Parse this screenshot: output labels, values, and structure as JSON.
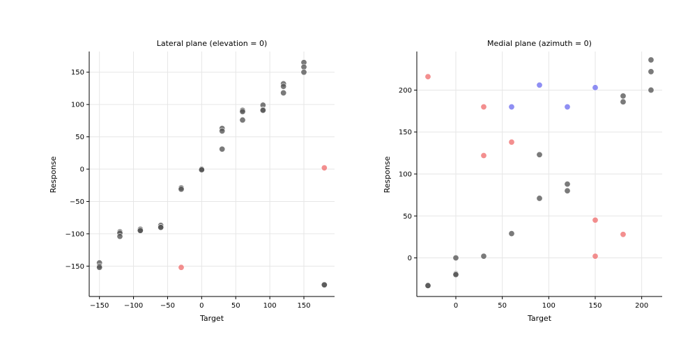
{
  "chart_data": [
    {
      "type": "scatter",
      "title": "Lateral plane (elevation = 0)",
      "xlabel": "Target",
      "ylabel": "Response",
      "xlim": [
        -165,
        195
      ],
      "ylim": [
        -197,
        182
      ],
      "xticks": [
        -150,
        -100,
        -50,
        0,
        50,
        100,
        150
      ],
      "yticks": [
        -150,
        -100,
        -50,
        0,
        50,
        100,
        150
      ],
      "xtick_labels": [
        "−150",
        "−100",
        "−50",
        "0",
        "50",
        "100",
        "150"
      ],
      "ytick_labels": [
        "−150",
        "−100",
        "−50",
        "0",
        "50",
        "100",
        "150"
      ],
      "grid": true,
      "colors": {
        "gray": "#555555",
        "red": "#f07070",
        "blue": "#7070f0"
      },
      "points": [
        {
          "x": -150,
          "y": -145,
          "c": "gray"
        },
        {
          "x": -150,
          "y": -150,
          "c": "gray"
        },
        {
          "x": -150,
          "y": -152,
          "c": "gray"
        },
        {
          "x": -120,
          "y": -97,
          "c": "gray"
        },
        {
          "x": -120,
          "y": -99,
          "c": "gray"
        },
        {
          "x": -120,
          "y": -104,
          "c": "gray"
        },
        {
          "x": -90,
          "y": -93,
          "c": "gray"
        },
        {
          "x": -90,
          "y": -95,
          "c": "gray"
        },
        {
          "x": -90,
          "y": -95,
          "c": "gray"
        },
        {
          "x": -60,
          "y": -87,
          "c": "gray"
        },
        {
          "x": -60,
          "y": -90,
          "c": "gray"
        },
        {
          "x": -60,
          "y": -90,
          "c": "gray"
        },
        {
          "x": -30,
          "y": -29,
          "c": "gray"
        },
        {
          "x": -30,
          "y": -31,
          "c": "gray"
        },
        {
          "x": -30,
          "y": -152,
          "c": "red"
        },
        {
          "x": 0,
          "y": 0,
          "c": "gray"
        },
        {
          "x": 0,
          "y": 0,
          "c": "gray"
        },
        {
          "x": 0,
          "y": -1,
          "c": "gray"
        },
        {
          "x": 30,
          "y": 63,
          "c": "gray"
        },
        {
          "x": 30,
          "y": 59,
          "c": "gray"
        },
        {
          "x": 30,
          "y": 31,
          "c": "gray"
        },
        {
          "x": 60,
          "y": 91,
          "c": "gray"
        },
        {
          "x": 60,
          "y": 89,
          "c": "gray"
        },
        {
          "x": 60,
          "y": 76,
          "c": "gray"
        },
        {
          "x": 90,
          "y": 99,
          "c": "gray"
        },
        {
          "x": 90,
          "y": 92,
          "c": "gray"
        },
        {
          "x": 90,
          "y": 91,
          "c": "gray"
        },
        {
          "x": 120,
          "y": 132,
          "c": "gray"
        },
        {
          "x": 120,
          "y": 128,
          "c": "gray"
        },
        {
          "x": 120,
          "y": 118,
          "c": "gray"
        },
        {
          "x": 150,
          "y": 165,
          "c": "gray"
        },
        {
          "x": 150,
          "y": 158,
          "c": "gray"
        },
        {
          "x": 150,
          "y": 150,
          "c": "gray"
        },
        {
          "x": 180,
          "y": 2,
          "c": "red"
        },
        {
          "x": 180,
          "y": -179,
          "c": "gray"
        },
        {
          "x": 180,
          "y": -179,
          "c": "gray"
        }
      ]
    },
    {
      "type": "scatter",
      "title": "Medial plane (azimuth = 0)",
      "xlabel": "Target",
      "ylabel": "Response",
      "xlim": [
        -42,
        222
      ],
      "ylim": [
        -46,
        246
      ],
      "xticks": [
        0,
        50,
        100,
        150,
        200
      ],
      "yticks": [
        0,
        50,
        100,
        150,
        200
      ],
      "xtick_labels": [
        "0",
        "50",
        "100",
        "150",
        "200"
      ],
      "ytick_labels": [
        "0",
        "50",
        "100",
        "150",
        "200"
      ],
      "grid": true,
      "colors": {
        "gray": "#555555",
        "red": "#f07070",
        "blue": "#7070f0"
      },
      "points": [
        {
          "x": -30,
          "y": 216,
          "c": "red"
        },
        {
          "x": -30,
          "y": -33,
          "c": "gray"
        },
        {
          "x": -30,
          "y": -33,
          "c": "gray"
        },
        {
          "x": 0,
          "y": 0,
          "c": "gray"
        },
        {
          "x": 0,
          "y": -19,
          "c": "gray"
        },
        {
          "x": 0,
          "y": -20,
          "c": "gray"
        },
        {
          "x": 30,
          "y": 180,
          "c": "red"
        },
        {
          "x": 30,
          "y": 122,
          "c": "red"
        },
        {
          "x": 30,
          "y": 2,
          "c": "gray"
        },
        {
          "x": 60,
          "y": 180,
          "c": "blue"
        },
        {
          "x": 60,
          "y": 138,
          "c": "red"
        },
        {
          "x": 60,
          "y": 29,
          "c": "gray"
        },
        {
          "x": 90,
          "y": 206,
          "c": "blue"
        },
        {
          "x": 90,
          "y": 123,
          "c": "gray"
        },
        {
          "x": 90,
          "y": 71,
          "c": "gray"
        },
        {
          "x": 120,
          "y": 180,
          "c": "blue"
        },
        {
          "x": 120,
          "y": 88,
          "c": "gray"
        },
        {
          "x": 120,
          "y": 80,
          "c": "gray"
        },
        {
          "x": 150,
          "y": 203,
          "c": "blue"
        },
        {
          "x": 150,
          "y": 45,
          "c": "red"
        },
        {
          "x": 150,
          "y": 2,
          "c": "red"
        },
        {
          "x": 180,
          "y": 193,
          "c": "gray"
        },
        {
          "x": 180,
          "y": 186,
          "c": "gray"
        },
        {
          "x": 180,
          "y": 28,
          "c": "red"
        },
        {
          "x": 210,
          "y": 236,
          "c": "gray"
        },
        {
          "x": 210,
          "y": 222,
          "c": "gray"
        },
        {
          "x": 210,
          "y": 200,
          "c": "gray"
        }
      ]
    }
  ]
}
